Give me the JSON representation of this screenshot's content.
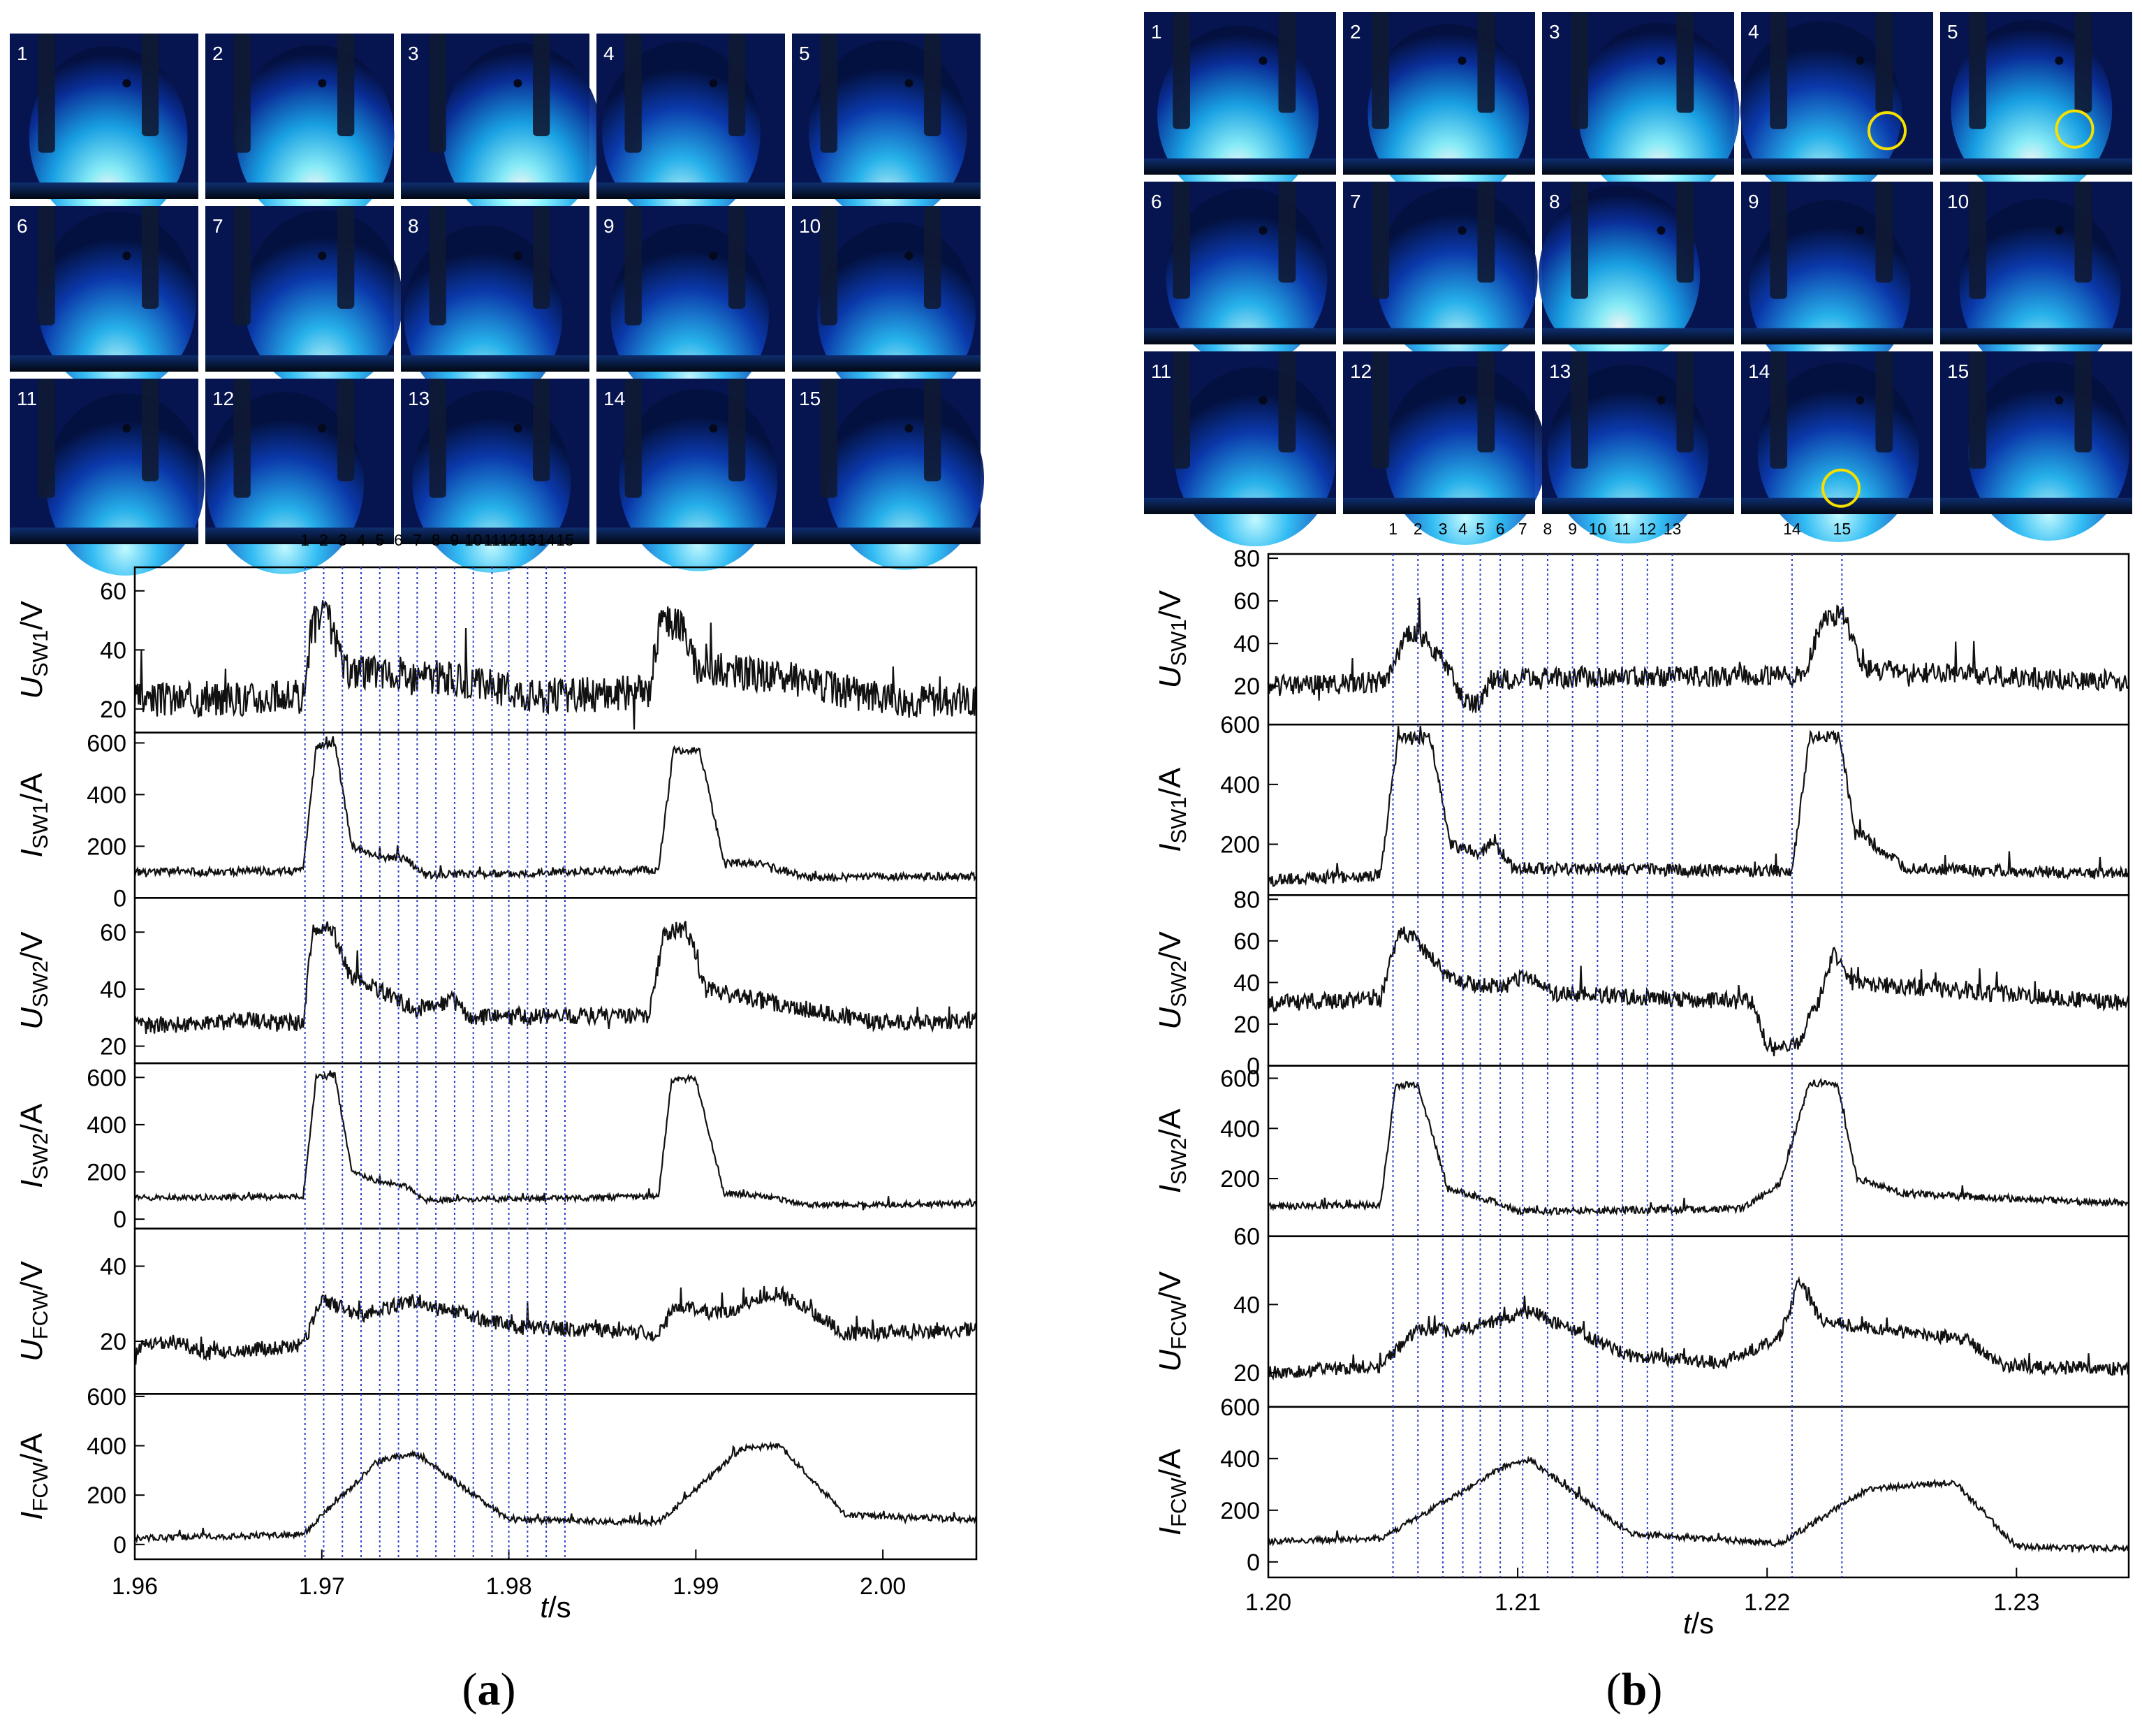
{
  "panels": [
    {
      "id": "a",
      "caption_letter": "a",
      "frame_labels": [
        "1",
        "2",
        "3",
        "4",
        "5",
        "6",
        "7",
        "8",
        "9",
        "10",
        "11",
        "12",
        "13",
        "14",
        "15"
      ],
      "marker_labels": [
        "1",
        "2",
        "3",
        "4",
        "5",
        "6",
        "7",
        "8",
        "9",
        "10",
        "11",
        "12",
        "13",
        "14",
        "15"
      ],
      "markers_t": [
        1.9691,
        1.9701,
        1.9711,
        1.9721,
        1.9731,
        1.9741,
        1.9751,
        1.9761,
        1.9771,
        1.9781,
        1.9791,
        1.98,
        1.981,
        1.982,
        1.983
      ]
    },
    {
      "id": "b",
      "caption_letter": "b",
      "frame_labels": [
        "1",
        "2",
        "3",
        "4",
        "5",
        "6",
        "7",
        "8",
        "9",
        "10",
        "11",
        "12",
        "13",
        "14",
        "15"
      ],
      "marker_labels": [
        "1",
        "2",
        "3",
        "4",
        "5",
        "6",
        "7",
        "8",
        "9",
        "10",
        "11",
        "12",
        "13",
        "14",
        "15"
      ],
      "markers_t": [
        1.205,
        1.206,
        1.207,
        1.2078,
        1.2085,
        1.2093,
        1.2102,
        1.2112,
        1.2122,
        1.2132,
        1.2142,
        1.2152,
        1.2162,
        1.221,
        1.223
      ]
    }
  ],
  "chart_data": [
    {
      "type": "line",
      "panel": "a",
      "xlabel": "t/s",
      "xlim": [
        1.96,
        2.005
      ],
      "xticks": [
        "1.96",
        "1.97",
        "1.98",
        "1.99",
        "2.00"
      ],
      "xtick_values": [
        1.96,
        1.97,
        1.98,
        1.99,
        2.0
      ],
      "subplots": [
        {
          "ylabel_main": "U",
          "ylabel_sub": "SW1",
          "ylabel_unit": "/V",
          "ylim": [
            12,
            68
          ],
          "yticks": [
            "20",
            "40",
            "60"
          ],
          "ytick_values": [
            20,
            40,
            60
          ],
          "points": [
            [
              1.96,
              23
            ],
            [
              1.969,
              24
            ],
            [
              1.9695,
              50
            ],
            [
              1.9703,
              52
            ],
            [
              1.9712,
              33
            ],
            [
              1.976,
              31
            ],
            [
              1.982,
              24
            ],
            [
              1.9875,
              26
            ],
            [
              1.988,
              48
            ],
            [
              1.9892,
              50
            ],
            [
              1.99,
              34
            ],
            [
              1.995,
              30
            ],
            [
              2.0,
              23
            ],
            [
              2.005,
              23
            ]
          ],
          "noise": 6
        },
        {
          "ylabel_main": "I",
          "ylabel_sub": "SW1",
          "ylabel_unit": "/A",
          "ylim": [
            0,
            640
          ],
          "yticks": [
            "0",
            "200",
            "400",
            "600"
          ],
          "ytick_values": [
            0,
            200,
            400,
            600
          ],
          "points": [
            [
              1.96,
              100
            ],
            [
              1.969,
              105
            ],
            [
              1.9697,
              585
            ],
            [
              1.9707,
              600
            ],
            [
              1.9716,
              200
            ],
            [
              1.973,
              160
            ],
            [
              1.9745,
              150
            ],
            [
              1.9755,
              90
            ],
            [
              1.98,
              95
            ],
            [
              1.988,
              110
            ],
            [
              1.9888,
              570
            ],
            [
              1.9902,
              575
            ],
            [
              1.9915,
              140
            ],
            [
              1.9935,
              130
            ],
            [
              1.996,
              80
            ],
            [
              2.005,
              85
            ]
          ],
          "noise": 15
        },
        {
          "ylabel_main": "U",
          "ylabel_sub": "SW2",
          "ylabel_unit": "/V",
          "ylim": [
            14,
            72
          ],
          "yticks": [
            "20",
            "40",
            "60"
          ],
          "ytick_values": [
            20,
            40,
            60
          ],
          "points": [
            [
              1.96,
              27
            ],
            [
              1.966,
              29
            ],
            [
              1.969,
              28
            ],
            [
              1.9695,
              60
            ],
            [
              1.9705,
              62
            ],
            [
              1.9715,
              45
            ],
            [
              1.973,
              40
            ],
            [
              1.975,
              33
            ],
            [
              1.977,
              36
            ],
            [
              1.978,
              30
            ],
            [
              1.9875,
              31
            ],
            [
              1.9883,
              60
            ],
            [
              1.9895,
              61
            ],
            [
              1.9905,
              40
            ],
            [
              1.995,
              34
            ],
            [
              2.0,
              28
            ],
            [
              2.005,
              29
            ]
          ],
          "noise": 3
        },
        {
          "ylabel_main": "I",
          "ylabel_sub": "SW2",
          "ylabel_unit": "/A",
          "ylim": [
            -40,
            660
          ],
          "yticks": [
            "0",
            "200",
            "400",
            "600"
          ],
          "ytick_values": [
            0,
            200,
            400,
            600
          ],
          "points": [
            [
              1.96,
              90
            ],
            [
              1.969,
              95
            ],
            [
              1.9697,
              600
            ],
            [
              1.9707,
              610
            ],
            [
              1.9716,
              200
            ],
            [
              1.973,
              160
            ],
            [
              1.9745,
              140
            ],
            [
              1.9755,
              80
            ],
            [
              1.98,
              85
            ],
            [
              1.988,
              95
            ],
            [
              1.9887,
              590
            ],
            [
              1.99,
              595
            ],
            [
              1.9915,
              110
            ],
            [
              1.9935,
              100
            ],
            [
              1.996,
              60
            ],
            [
              2.005,
              65
            ]
          ],
          "noise": 12
        },
        {
          "ylabel_main": "U",
          "ylabel_sub": "FCW",
          "ylabel_unit": "/V",
          "ylim": [
            6,
            50
          ],
          "yticks": [
            "20",
            "40"
          ],
          "ytick_values": [
            20,
            40
          ],
          "points": [
            [
              1.96,
              18
            ],
            [
              1.962,
              20
            ],
            [
              1.964,
              17
            ],
            [
              1.969,
              19
            ],
            [
              1.97,
              31
            ],
            [
              1.972,
              27
            ],
            [
              1.975,
              31
            ],
            [
              1.98,
              24
            ],
            [
              1.988,
              22
            ],
            [
              1.989,
              30
            ],
            [
              1.991,
              27
            ],
            [
              1.9945,
              33
            ],
            [
              1.998,
              22
            ],
            [
              2.005,
              23
            ]
          ],
          "noise": 2
        },
        {
          "ylabel_main": "I",
          "ylabel_sub": "FCW",
          "ylabel_unit": "/A",
          "ylim": [
            -60,
            610
          ],
          "yticks": [
            "0",
            "200",
            "400",
            "600"
          ],
          "ytick_values": [
            0,
            200,
            400,
            600
          ],
          "points": [
            [
              1.96,
              25
            ],
            [
              1.969,
              40
            ],
            [
              1.973,
              340
            ],
            [
              1.975,
              370
            ],
            [
              1.98,
              100
            ],
            [
              1.988,
              90
            ],
            [
              1.9925,
              390
            ],
            [
              1.9945,
              400
            ],
            [
              1.998,
              120
            ],
            [
              2.005,
              100
            ]
          ],
          "noise": 12
        }
      ]
    },
    {
      "type": "line",
      "panel": "b",
      "xlabel": "t/s",
      "xlim": [
        1.2,
        1.2345
      ],
      "xticks": [
        "1.20",
        "1.21",
        "1.22",
        "1.23"
      ],
      "xtick_values": [
        1.2,
        1.21,
        1.22,
        1.23
      ],
      "subplots": [
        {
          "ylabel_main": "U",
          "ylabel_sub": "SW1",
          "ylabel_unit": "/V",
          "ylim": [
            2,
            82
          ],
          "yticks": [
            "20",
            "40",
            "60",
            "80"
          ],
          "ytick_values": [
            20,
            40,
            60,
            80
          ],
          "points": [
            [
              1.2,
              20
            ],
            [
              1.2048,
              22
            ],
            [
              1.2055,
              44
            ],
            [
              1.206,
              45
            ],
            [
              1.2072,
              30
            ],
            [
              1.2078,
              13
            ],
            [
              1.2085,
              12
            ],
            [
              1.2088,
              23
            ],
            [
              1.21,
              24
            ],
            [
              1.2215,
              25
            ],
            [
              1.2222,
              52
            ],
            [
              1.2231,
              53
            ],
            [
              1.2238,
              28
            ],
            [
              1.2345,
              22
            ]
          ],
          "noise": 5
        },
        {
          "ylabel_main": "I",
          "ylabel_sub": "SW1",
          "ylabel_unit": "/A",
          "ylim": [
            30,
            600
          ],
          "yticks": [
            "200",
            "400",
            "600"
          ],
          "ytick_values": [
            200,
            400,
            600
          ],
          "points": [
            [
              1.2,
              80
            ],
            [
              1.2045,
              95
            ],
            [
              1.2052,
              550
            ],
            [
              1.2065,
              555
            ],
            [
              1.2073,
              200
            ],
            [
              1.2085,
              170
            ],
            [
              1.209,
              210
            ],
            [
              1.2098,
              120
            ],
            [
              1.221,
              110
            ],
            [
              1.2217,
              560
            ],
            [
              1.2229,
              560
            ],
            [
              1.2235,
              250
            ],
            [
              1.2255,
              120
            ],
            [
              1.2345,
              100
            ]
          ],
          "noise": 20
        },
        {
          "ylabel_main": "U",
          "ylabel_sub": "SW2",
          "ylabel_unit": "/V",
          "ylim": [
            0,
            82
          ],
          "yticks": [
            "0",
            "20",
            "40",
            "60",
            "80"
          ],
          "ytick_values": [
            0,
            20,
            40,
            60,
            80
          ],
          "points": [
            [
              1.2,
              30
            ],
            [
              1.2045,
              32
            ],
            [
              1.2052,
              65
            ],
            [
              1.2058,
              62
            ],
            [
              1.2075,
              40
            ],
            [
              1.2095,
              38
            ],
            [
              1.2103,
              43
            ],
            [
              1.2115,
              35
            ],
            [
              1.2195,
              30
            ],
            [
              1.22,
              7
            ],
            [
              1.2212,
              10
            ],
            [
              1.222,
              30
            ],
            [
              1.2227,
              55
            ],
            [
              1.2233,
              40
            ],
            [
              1.2345,
              30
            ]
          ],
          "noise": 4
        },
        {
          "ylabel_main": "I",
          "ylabel_sub": "SW2",
          "ylabel_unit": "/A",
          "ylim": [
            -30,
            650
          ],
          "yticks": [
            "200",
            "400",
            "600"
          ],
          "ytick_values": [
            200,
            400,
            600
          ],
          "points": [
            [
              1.2,
              90
            ],
            [
              1.2045,
              95
            ],
            [
              1.2051,
              570
            ],
            [
              1.206,
              575
            ],
            [
              1.2072,
              160
            ],
            [
              1.209,
              110
            ],
            [
              1.21,
              70
            ],
            [
              1.219,
              80
            ],
            [
              1.2205,
              180
            ],
            [
              1.2217,
              580
            ],
            [
              1.2228,
              580
            ],
            [
              1.2236,
              200
            ],
            [
              1.2255,
              140
            ],
            [
              1.2345,
              100
            ]
          ],
          "noise": 14
        },
        {
          "ylabel_main": "U",
          "ylabel_sub": "FCW",
          "ylabel_unit": "/V",
          "ylim": [
            10,
            60
          ],
          "yticks": [
            "20",
            "40",
            "60"
          ],
          "ytick_values": [
            20,
            40,
            60
          ],
          "points": [
            [
              1.2,
              20
            ],
            [
              1.2045,
              22
            ],
            [
              1.206,
              33
            ],
            [
              1.2075,
              32
            ],
            [
              1.2105,
              38
            ],
            [
              1.2145,
              25
            ],
            [
              1.218,
              23
            ],
            [
              1.2205,
              30
            ],
            [
              1.2213,
              47
            ],
            [
              1.2222,
              35
            ],
            [
              1.225,
              32
            ],
            [
              1.228,
              30
            ],
            [
              1.2295,
              22
            ],
            [
              1.2345,
              21
            ]
          ],
          "noise": 2
        },
        {
          "ylabel_main": "I",
          "ylabel_sub": "FCW",
          "ylabel_unit": "/A",
          "ylim": [
            -60,
            600
          ],
          "yticks": [
            "0",
            "200",
            "400",
            "600"
          ],
          "ytick_values": [
            0,
            200,
            400,
            600
          ],
          "points": [
            [
              1.2,
              80
            ],
            [
              1.2045,
              90
            ],
            [
              1.2095,
              370
            ],
            [
              1.2105,
              395
            ],
            [
              1.2145,
              110
            ],
            [
              1.2205,
              70
            ],
            [
              1.224,
              280
            ],
            [
              1.2275,
              310
            ],
            [
              1.23,
              60
            ],
            [
              1.2345,
              50
            ]
          ],
          "noise": 12
        }
      ]
    }
  ]
}
